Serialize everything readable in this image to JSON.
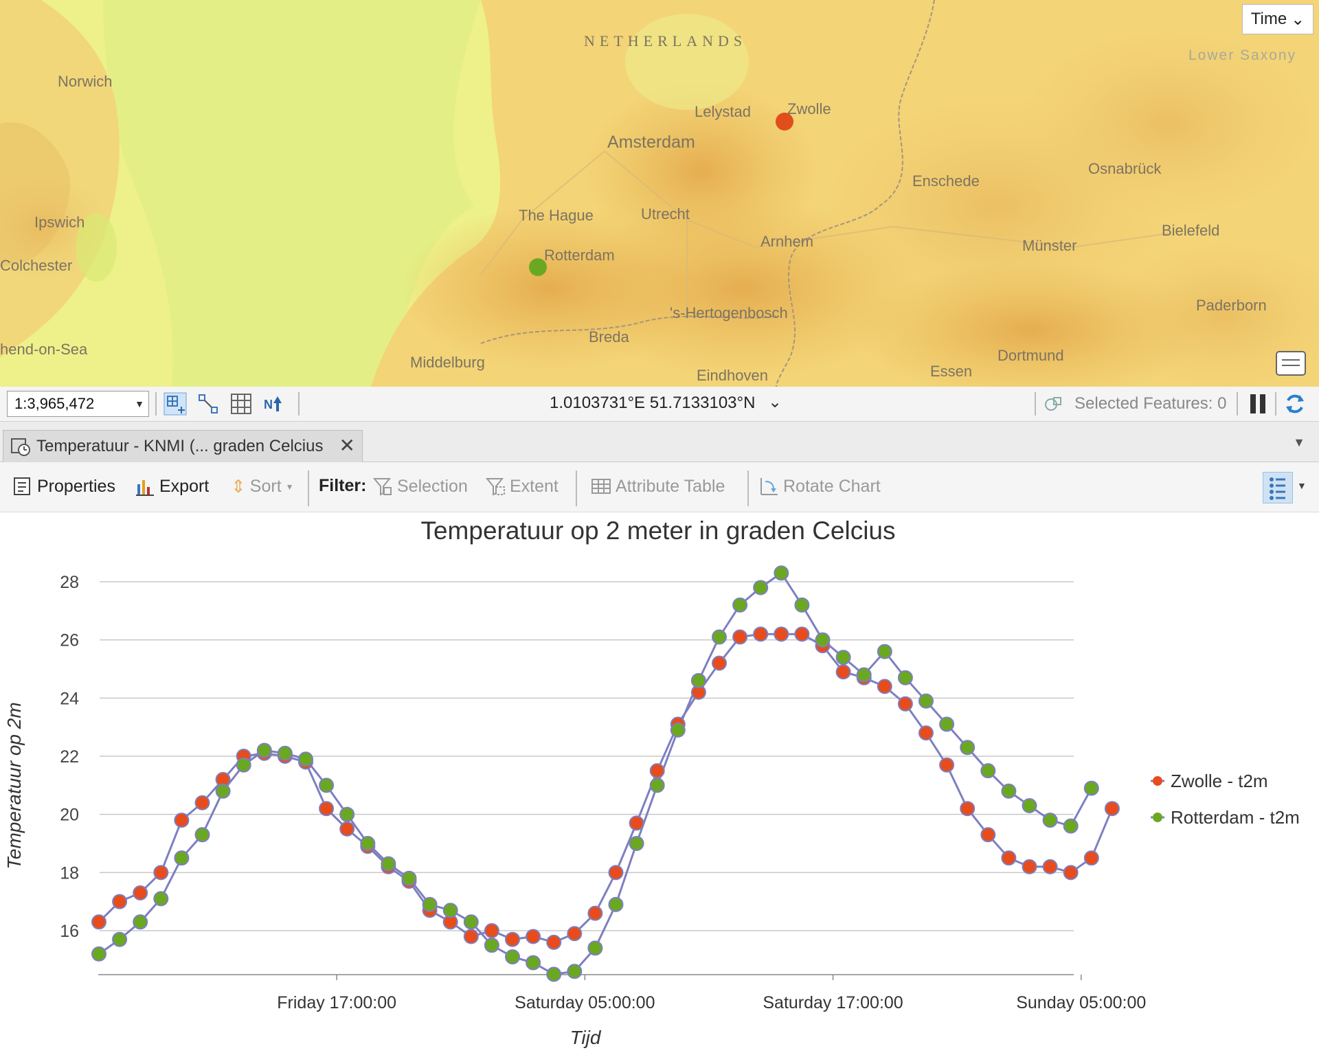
{
  "map": {
    "time_button": "Time",
    "country_label": "NETHERLANDS",
    "region_label": "Lower Saxony",
    "places": [
      "Norwich",
      "Ipswich",
      "Colchester",
      "hend-on-Sea",
      "Lelystad",
      "Zwolle",
      "Amsterdam",
      "Enschede",
      "Osnabrück",
      "The Hague",
      "Utrecht",
      "Arnhem",
      "Rotterdam",
      "Münster",
      "Bielefeld",
      "'s-Hertogenbosch",
      "Paderborn",
      "Breda",
      "Middelburg",
      "Dortmund",
      "Eindhoven",
      "Essen"
    ],
    "marker_colors": {
      "zwolle": "#e04e1a",
      "rotterdam": "#6aa822"
    }
  },
  "status": {
    "scale": "1:3,965,472",
    "coordinates": "1.0103731°E 51.7133103°N",
    "selected_features": "Selected Features: 0"
  },
  "tab": {
    "label": "Temperatuur - KNMI (... graden Celcius"
  },
  "toolbar": {
    "properties": "Properties",
    "export": "Export",
    "sort": "Sort",
    "filter_label": "Filter:",
    "selection": "Selection",
    "extent": "Extent",
    "attribute_table": "Attribute Table",
    "rotate_chart": "Rotate Chart"
  },
  "chart_data": {
    "type": "line",
    "title": "Temperatuur op 2 meter in graden Celcius",
    "xlabel": "Tijd",
    "ylabel": "Temperatuur op 2m",
    "ylim": [
      14.5,
      28.5
    ],
    "yticks": [
      16,
      18,
      20,
      22,
      24,
      26,
      28
    ],
    "xtick_labels": [
      "Friday 17:00:00",
      "Saturday 05:00:00",
      "Saturday 17:00:00",
      "Sunday 05:00:00"
    ],
    "grid": true,
    "legend": "right",
    "line_color": "#7d7fc0",
    "series": [
      {
        "name": "Zwolle - t2m",
        "color": "#e84c1c",
        "values": [
          16.3,
          17.0,
          17.3,
          18.0,
          19.8,
          20.4,
          21.2,
          22.0,
          22.1,
          22.0,
          21.8,
          20.2,
          19.5,
          18.9,
          18.2,
          17.7,
          16.7,
          16.3,
          15.8,
          16.0,
          15.7,
          15.8,
          15.6,
          15.9,
          16.6,
          18.0,
          19.7,
          21.5,
          23.1,
          24.2,
          25.2,
          26.1,
          26.2,
          26.2,
          26.2,
          25.8,
          24.9,
          24.7,
          24.4,
          23.8,
          22.8,
          21.7,
          20.2,
          19.3,
          18.5,
          18.2,
          18.2,
          18.0,
          18.5,
          20.2
        ]
      },
      {
        "name": "Rotterdam - t2m",
        "color": "#6aa822",
        "values": [
          15.2,
          15.7,
          16.3,
          17.1,
          18.5,
          19.3,
          20.8,
          21.7,
          22.2,
          22.1,
          21.9,
          21.0,
          20.0,
          19.0,
          18.3,
          17.8,
          16.9,
          16.7,
          16.3,
          15.5,
          15.1,
          14.9,
          14.5,
          14.6,
          15.4,
          16.9,
          19.0,
          21.0,
          22.9,
          24.6,
          26.1,
          27.2,
          27.8,
          28.3,
          27.2,
          26.0,
          25.4,
          24.8,
          25.6,
          24.7,
          23.9,
          23.1,
          22.3,
          21.5,
          20.8,
          20.3,
          19.8,
          19.6,
          20.9
        ]
      }
    ]
  }
}
